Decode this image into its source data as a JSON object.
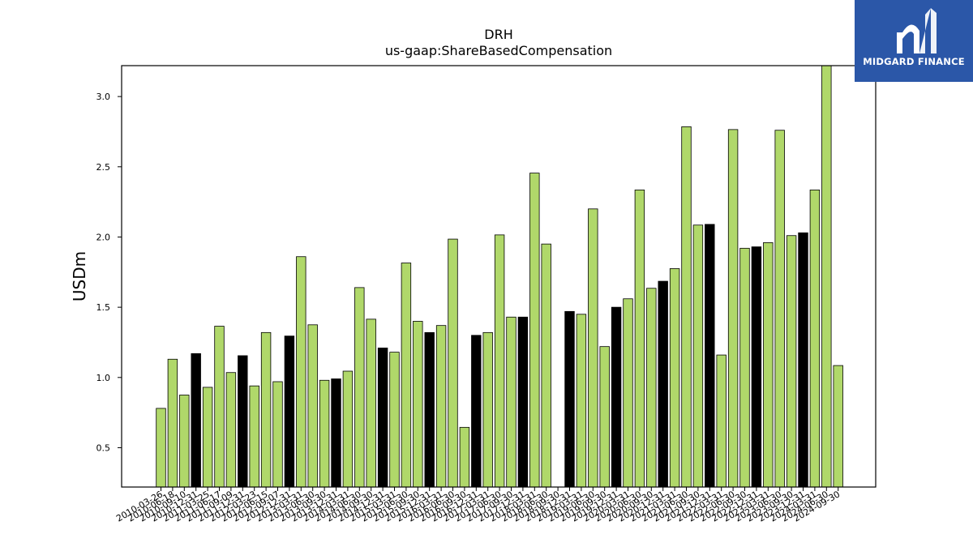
{
  "chart_data": {
    "type": "bar",
    "title": "DRH",
    "subtitle": "us-gaap:ShareBasedCompensation",
    "xlabel": "",
    "ylabel": "USDm",
    "ylim": [
      0.22,
      3.22
    ],
    "yticks": [
      0.5,
      1.0,
      1.5,
      2.0,
      2.5,
      3.0
    ],
    "grid": false,
    "colors": {
      "default": "#b0d86a",
      "highlight": "#000000",
      "edge": "#000000"
    },
    "bars": [
      {
        "label": "2010-03-26",
        "value": 0.78,
        "highlight": false
      },
      {
        "label": "2010-06-18",
        "value": 1.13,
        "highlight": false
      },
      {
        "label": "2010-09-10",
        "value": 0.875,
        "highlight": false
      },
      {
        "label": "2010-12-31",
        "value": 1.17,
        "highlight": true
      },
      {
        "label": "2011-03-25",
        "value": 0.93,
        "highlight": false
      },
      {
        "label": "2011-06-17",
        "value": 1.365,
        "highlight": false
      },
      {
        "label": "2011-09-09",
        "value": 1.035,
        "highlight": false
      },
      {
        "label": "2011-12-31",
        "value": 1.155,
        "highlight": true
      },
      {
        "label": "2012-03-23",
        "value": 0.94,
        "highlight": false
      },
      {
        "label": "2012-06-15",
        "value": 1.32,
        "highlight": false
      },
      {
        "label": "2012-09-07",
        "value": 0.97,
        "highlight": false
      },
      {
        "label": "2012-12-31",
        "value": 1.295,
        "highlight": true
      },
      {
        "label": "2013-03-31",
        "value": 1.86,
        "highlight": false
      },
      {
        "label": "2013-06-30",
        "value": 1.375,
        "highlight": false
      },
      {
        "label": "2013-09-30",
        "value": 0.98,
        "highlight": false
      },
      {
        "label": "2013-12-31",
        "value": 0.99,
        "highlight": true
      },
      {
        "label": "2014-03-31",
        "value": 1.045,
        "highlight": false
      },
      {
        "label": "2014-06-30",
        "value": 1.64,
        "highlight": false
      },
      {
        "label": "2014-09-30",
        "value": 1.415,
        "highlight": false
      },
      {
        "label": "2014-12-31",
        "value": 1.21,
        "highlight": true
      },
      {
        "label": "2015-03-31",
        "value": 1.18,
        "highlight": false
      },
      {
        "label": "2015-06-30",
        "value": 1.815,
        "highlight": false
      },
      {
        "label": "2015-09-30",
        "value": 1.4,
        "highlight": false
      },
      {
        "label": "2015-12-31",
        "value": 1.32,
        "highlight": true
      },
      {
        "label": "2016-03-31",
        "value": 1.37,
        "highlight": false
      },
      {
        "label": "2016-06-30",
        "value": 1.985,
        "highlight": false
      },
      {
        "label": "2016-09-30",
        "value": 0.645,
        "highlight": false
      },
      {
        "label": "2016-12-31",
        "value": 1.3,
        "highlight": true
      },
      {
        "label": "2017-03-31",
        "value": 1.32,
        "highlight": false
      },
      {
        "label": "2017-06-30",
        "value": 2.015,
        "highlight": false
      },
      {
        "label": "2017-09-30",
        "value": 1.43,
        "highlight": false
      },
      {
        "label": "2017-12-31",
        "value": 1.43,
        "highlight": true
      },
      {
        "label": "2018-03-31",
        "value": 2.455,
        "highlight": false
      },
      {
        "label": "2018-06-30",
        "value": 1.95,
        "highlight": false
      },
      {
        "label": "2018-09-30",
        "value": 0.22,
        "highlight": false
      },
      {
        "label": "2018-12-31",
        "value": 1.47,
        "highlight": true
      },
      {
        "label": "2019-03-31",
        "value": 1.45,
        "highlight": false
      },
      {
        "label": "2019-06-30",
        "value": 2.2,
        "highlight": false
      },
      {
        "label": "2019-09-30",
        "value": 1.22,
        "highlight": false
      },
      {
        "label": "2019-12-31",
        "value": 1.5,
        "highlight": true
      },
      {
        "label": "2020-03-31",
        "value": 1.56,
        "highlight": false
      },
      {
        "label": "2020-06-30",
        "value": 2.335,
        "highlight": false
      },
      {
        "label": "2020-09-30",
        "value": 1.635,
        "highlight": false
      },
      {
        "label": "2020-12-31",
        "value": 1.685,
        "highlight": true
      },
      {
        "label": "2021-03-31",
        "value": 1.775,
        "highlight": false
      },
      {
        "label": "2021-06-30",
        "value": 2.785,
        "highlight": false
      },
      {
        "label": "2021-09-30",
        "value": 2.085,
        "highlight": false
      },
      {
        "label": "2021-12-31",
        "value": 2.09,
        "highlight": true
      },
      {
        "label": "2022-03-31",
        "value": 1.16,
        "highlight": false
      },
      {
        "label": "2022-06-30",
        "value": 2.765,
        "highlight": false
      },
      {
        "label": "2022-09-30",
        "value": 1.92,
        "highlight": false
      },
      {
        "label": "2022-12-31",
        "value": 1.93,
        "highlight": true
      },
      {
        "label": "2023-03-31",
        "value": 1.96,
        "highlight": false
      },
      {
        "label": "2023-06-30",
        "value": 2.76,
        "highlight": false
      },
      {
        "label": "2023-09-30",
        "value": 2.01,
        "highlight": false
      },
      {
        "label": "2023-12-31",
        "value": 2.03,
        "highlight": true
      },
      {
        "label": "2024-03-31",
        "value": 2.335,
        "highlight": false
      },
      {
        "label": "2024-06-30",
        "value": 3.22,
        "highlight": false
      },
      {
        "label": "2024-09-30",
        "value": 1.085,
        "highlight": false
      }
    ]
  },
  "logo": {
    "text": "MIDGARD FINANCE"
  }
}
